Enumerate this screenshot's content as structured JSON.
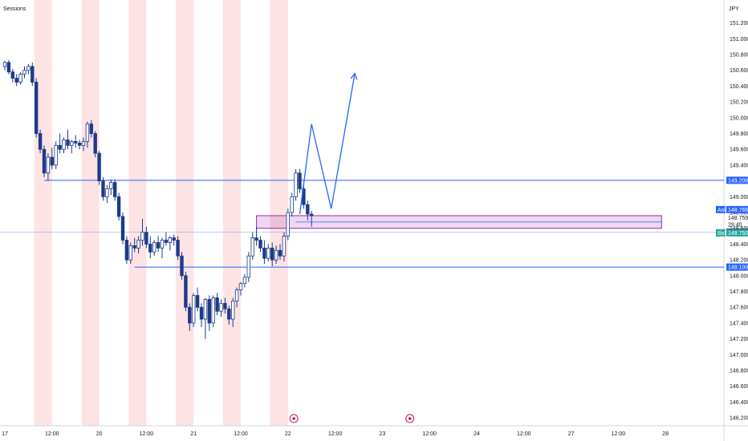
{
  "chart_data": {
    "type": "candlestick",
    "title": "",
    "indicator_label": "Sessions",
    "currency": "JPY",
    "ylim": [
      146.1,
      151.45
    ],
    "y_ticks": [
      151.2,
      151.0,
      150.8,
      150.6,
      150.4,
      150.2,
      150.0,
      149.8,
      149.6,
      149.4,
      149.2,
      149.0,
      148.8,
      148.6,
      148.4,
      148.2,
      148.0,
      147.8,
      147.6,
      147.4,
      147.2,
      147.0,
      146.8,
      146.6,
      146.4,
      146.2
    ],
    "y_tick_labels": [
      "151.200",
      "151.000",
      "150.800",
      "150.600",
      "150.400",
      "150.200",
      "150.000",
      "149.800",
      "149.600",
      "149.400",
      "149.200",
      "149.000",
      "148.800",
      "148.600",
      "148.400",
      "148.200",
      "148.000",
      "147.800",
      "147.600",
      "147.400",
      "147.200",
      "147.000",
      "146.800",
      "146.600",
      "146.400",
      "146.200"
    ],
    "x_ticks": [
      {
        "label": "17",
        "t": 0
      },
      {
        "label": "12:00",
        "t": 12
      },
      {
        "label": "20",
        "t": 24
      },
      {
        "label": "12:00",
        "t": 36
      },
      {
        "label": "21",
        "t": 48
      },
      {
        "label": "12:00",
        "t": 60
      },
      {
        "label": "22",
        "t": 72
      },
      {
        "label": "12:00",
        "t": 84
      },
      {
        "label": "23",
        "t": 96
      },
      {
        "label": "12:00",
        "t": 108
      },
      {
        "label": "24",
        "t": 120
      },
      {
        "label": "12:00",
        "t": 132
      },
      {
        "label": "27",
        "t": 144
      },
      {
        "label": "12:00",
        "t": 156
      },
      {
        "label": "28",
        "t": 168
      }
    ],
    "sessions": [
      [
        7.5,
        12
      ],
      [
        19.5,
        24
      ],
      [
        31.5,
        36
      ],
      [
        43.5,
        48
      ],
      [
        55.5,
        60
      ],
      [
        67.5,
        72
      ]
    ],
    "candles": [
      [
        150.65,
        150.72,
        150.6,
        150.7
      ],
      [
        150.7,
        150.73,
        150.55,
        150.58
      ],
      [
        150.58,
        150.62,
        150.45,
        150.5
      ],
      [
        150.5,
        150.55,
        150.4,
        150.45
      ],
      [
        150.45,
        150.58,
        150.42,
        150.55
      ],
      [
        150.55,
        150.65,
        150.5,
        150.6
      ],
      [
        150.6,
        150.68,
        150.55,
        150.65
      ],
      [
        150.65,
        150.7,
        150.4,
        150.45
      ],
      [
        150.45,
        150.5,
        149.75,
        149.8
      ],
      [
        149.8,
        149.85,
        149.55,
        149.6
      ],
      [
        149.6,
        149.65,
        149.25,
        149.3
      ],
      [
        149.3,
        149.55,
        149.2,
        149.5
      ],
      [
        149.5,
        149.62,
        149.35,
        149.4
      ],
      [
        149.4,
        149.7,
        149.35,
        149.65
      ],
      [
        149.65,
        149.8,
        149.55,
        149.6
      ],
      [
        149.6,
        149.75,
        149.55,
        149.72
      ],
      [
        149.72,
        149.85,
        149.6,
        149.65
      ],
      [
        149.65,
        149.72,
        149.55,
        149.7
      ],
      [
        149.7,
        149.78,
        149.62,
        149.68
      ],
      [
        149.68,
        149.72,
        149.6,
        149.65
      ],
      [
        149.65,
        149.75,
        149.58,
        149.7
      ],
      [
        149.7,
        149.95,
        149.62,
        149.92
      ],
      [
        149.92,
        149.97,
        149.75,
        149.8
      ],
      [
        149.8,
        149.83,
        149.5,
        149.55
      ],
      [
        149.55,
        149.58,
        149.15,
        149.2
      ],
      [
        149.2,
        149.25,
        148.95,
        149.0
      ],
      [
        149.0,
        149.15,
        148.92,
        149.1
      ],
      [
        149.1,
        149.22,
        149.02,
        149.18
      ],
      [
        149.18,
        149.22,
        148.95,
        149.0
      ],
      [
        149.0,
        149.05,
        148.7,
        148.75
      ],
      [
        148.75,
        148.8,
        148.4,
        148.45
      ],
      [
        148.45,
        148.5,
        148.15,
        148.2
      ],
      [
        148.2,
        148.42,
        148.15,
        148.38
      ],
      [
        148.38,
        148.48,
        148.3,
        148.35
      ],
      [
        148.35,
        148.5,
        148.28,
        148.45
      ],
      [
        148.45,
        148.72,
        148.38,
        148.55
      ],
      [
        148.55,
        148.62,
        148.35,
        148.4
      ],
      [
        148.4,
        148.5,
        148.22,
        148.3
      ],
      [
        148.3,
        148.45,
        148.25,
        148.42
      ],
      [
        148.42,
        148.5,
        148.3,
        148.35
      ],
      [
        148.35,
        148.48,
        148.22,
        148.45
      ],
      [
        148.45,
        148.55,
        148.38,
        148.42
      ],
      [
        148.42,
        148.5,
        148.32,
        148.48
      ],
      [
        148.48,
        148.52,
        148.38,
        148.45
      ],
      [
        148.45,
        148.5,
        148.2,
        148.25
      ],
      [
        148.25,
        148.3,
        147.95,
        148.0
      ],
      [
        148.0,
        148.05,
        147.55,
        147.6
      ],
      [
        147.6,
        147.65,
        147.3,
        147.4
      ],
      [
        147.4,
        147.78,
        147.35,
        147.75
      ],
      [
        147.75,
        147.85,
        147.55,
        147.6
      ],
      [
        147.6,
        147.65,
        147.35,
        147.45
      ],
      [
        147.45,
        147.72,
        147.2,
        147.7
      ],
      [
        147.7,
        147.75,
        147.3,
        147.4
      ],
      [
        147.4,
        147.75,
        147.35,
        147.72
      ],
      [
        147.72,
        147.78,
        147.5,
        147.55
      ],
      [
        147.55,
        147.7,
        147.48,
        147.65
      ],
      [
        147.65,
        147.72,
        147.52,
        147.58
      ],
      [
        147.58,
        147.62,
        147.38,
        147.45
      ],
      [
        147.45,
        147.72,
        147.35,
        147.68
      ],
      [
        147.68,
        147.85,
        147.6,
        147.82
      ],
      [
        147.82,
        147.92,
        147.75,
        147.9
      ],
      [
        147.9,
        148.02,
        147.85,
        147.98
      ],
      [
        147.98,
        148.3,
        147.92,
        148.25
      ],
      [
        148.25,
        148.55,
        148.2,
        148.48
      ],
      [
        148.48,
        148.62,
        148.38,
        148.45
      ],
      [
        148.45,
        148.5,
        148.3,
        148.35
      ],
      [
        148.35,
        148.45,
        148.15,
        148.22
      ],
      [
        148.22,
        148.4,
        148.18,
        148.35
      ],
      [
        148.35,
        148.42,
        148.12,
        148.2
      ],
      [
        148.2,
        148.38,
        148.15,
        148.32
      ],
      [
        148.32,
        148.4,
        148.2,
        148.25
      ],
      [
        148.25,
        148.55,
        148.18,
        148.5
      ],
      [
        148.5,
        148.85,
        148.45,
        148.8
      ],
      [
        148.8,
        149.05,
        148.75,
        149.0
      ],
      [
        149.0,
        149.35,
        148.95,
        149.3
      ],
      [
        149.3,
        149.35,
        149.05,
        149.1
      ],
      [
        149.1,
        149.15,
        148.85,
        148.9
      ],
      [
        148.9,
        148.95,
        148.7,
        148.78
      ],
      [
        148.78,
        148.82,
        148.62,
        148.76
      ]
    ],
    "horizontal_lines": [
      {
        "price": 149.208,
        "label": "149.208",
        "color": "#2962ff"
      },
      {
        "price": 148.109,
        "label": "148.109",
        "color": "#2962ff"
      },
      {
        "price": 148.551,
        "label": "148.551",
        "color": "#2962ff"
      }
    ],
    "zone": {
      "from_t": 64,
      "to_t": 167,
      "low": 148.6,
      "high": 148.76,
      "color": "#9c27b0"
    },
    "projection_path": [
      [
        75,
        148.78
      ],
      [
        78,
        149.92
      ],
      [
        83,
        148.85
      ],
      [
        89,
        150.56
      ]
    ],
    "price_tags": {
      "ask": {
        "label": "Ask",
        "price": 148.766,
        "text": "148.766",
        "color": "#2962ff"
      },
      "last": {
        "price": 148.759,
        "text": "148.759",
        "timer": "29:40"
      },
      "bid": {
        "label": "Bid",
        "price": 148.75,
        "text": "148.750",
        "color": "#26a69a"
      }
    },
    "event_markers": [
      {
        "t": 73.5,
        "kind": "flag"
      },
      {
        "t": 103,
        "kind": "circle"
      }
    ]
  }
}
